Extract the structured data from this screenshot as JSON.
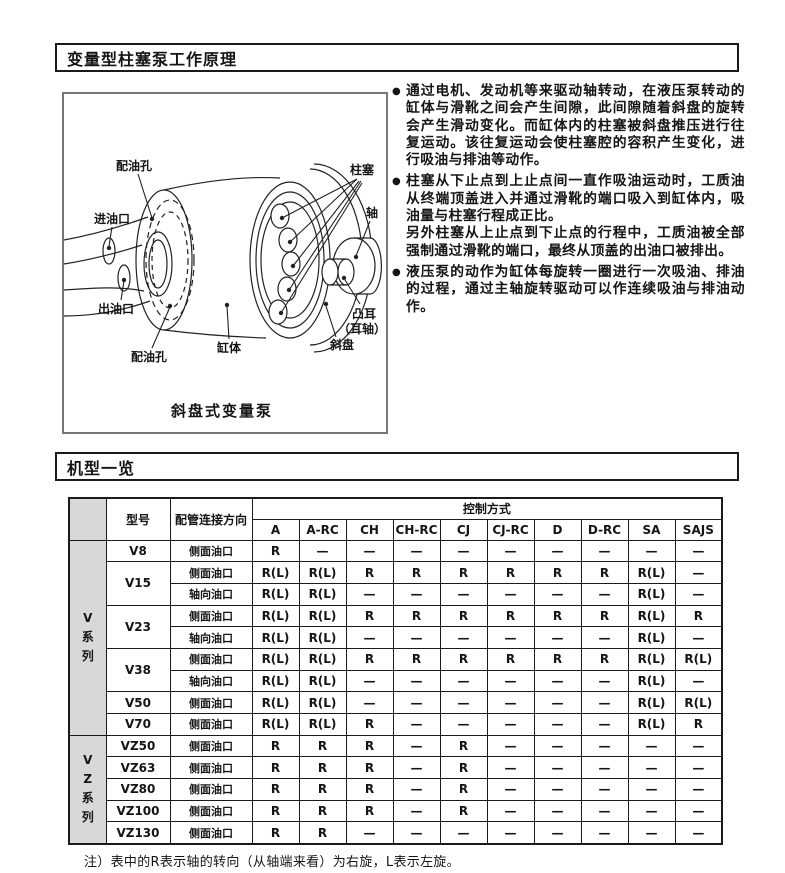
{
  "page": {
    "section1_title": "变量型柱塞泵工作原理",
    "section2_title": "机型一览",
    "bullet_glyph": "●",
    "note": "注）表中的R表示轴的转向（从轴端来看）为右旋，L表示左旋。"
  },
  "principle_bullets": [
    "通过电机、发动机等来驱动轴转动，在液压泵转动的缸体与滑靴之间会产生间隙，此间隙随着斜盘的旋转会产生滑动变化。而缸体内的柱塞被斜盘推压进行往复运动。该往复运动会使柱塞腔的容积产生变化，进行吸油与排油等动作。",
    "柱塞从下止点到上止点间一直作吸油运动时，工质油从终端顶盖进入并通过滑靴的端口吸入到缸体内，吸油量与柱塞行程成正比。\n另外柱塞从上止点到下止点的行程中，工质油被全部强制通过滑靴的端口，最终从顶盖的出油口被排出。",
    "液压泵的动作为缸体每旋转一圈进行一次吸油、排油的过程，通过主轴旋转驱动可以作连续吸油与排油动作。"
  ],
  "diagram": {
    "caption": "斜盘式变量泵",
    "labels": {
      "port_hole_top": "配油孔",
      "inlet_port": "进油口",
      "outlet_port": "出油口",
      "port_hole_bottom": "配油孔",
      "cylinder_block": "缸体",
      "piston": "柱塞",
      "shaft": "轴",
      "lug_line1": "凸耳",
      "lug_line2": "（耳轴）",
      "swash_plate": "斜盘"
    }
  },
  "table": {
    "model_header": "型号",
    "piping_header": "配管连接方向",
    "control_header": "控制方式",
    "control_cols": [
      "A",
      "A-RC",
      "CH",
      "CH-RC",
      "CJ",
      "CJ-RC",
      "D",
      "D-RC",
      "SA",
      "SAJS"
    ],
    "groups": [
      {
        "label": "V\n系\n列",
        "models": [
          {
            "model": "V8",
            "rows": [
              {
                "piping": "侧面油口",
                "cells": [
                  "R",
                  "—",
                  "—",
                  "—",
                  "—",
                  "—",
                  "—",
                  "—",
                  "—",
                  "—"
                ]
              }
            ]
          },
          {
            "model": "V15",
            "rows": [
              {
                "piping": "侧面油口",
                "cells": [
                  "R(L)",
                  "R(L)",
                  "R",
                  "R",
                  "R",
                  "R",
                  "R",
                  "R",
                  "R(L)",
                  "—"
                ]
              },
              {
                "piping": "轴向油口",
                "cells": [
                  "R(L)",
                  "R(L)",
                  "—",
                  "—",
                  "—",
                  "—",
                  "—",
                  "—",
                  "R(L)",
                  "—"
                ]
              }
            ]
          },
          {
            "model": "V23",
            "rows": [
              {
                "piping": "侧面油口",
                "cells": [
                  "R(L)",
                  "R(L)",
                  "R",
                  "R",
                  "R",
                  "R",
                  "R",
                  "R",
                  "R(L)",
                  "R"
                ]
              },
              {
                "piping": "轴向油口",
                "cells": [
                  "R(L)",
                  "R(L)",
                  "—",
                  "—",
                  "—",
                  "—",
                  "—",
                  "—",
                  "R(L)",
                  "—"
                ]
              }
            ]
          },
          {
            "model": "V38",
            "rows": [
              {
                "piping": "侧面油口",
                "cells": [
                  "R(L)",
                  "R(L)",
                  "R",
                  "R",
                  "R",
                  "R",
                  "R",
                  "R",
                  "R(L)",
                  "R(L)"
                ]
              },
              {
                "piping": "轴向油口",
                "cells": [
                  "R(L)",
                  "R(L)",
                  "—",
                  "—",
                  "—",
                  "—",
                  "—",
                  "—",
                  "R(L)",
                  "—"
                ]
              }
            ]
          },
          {
            "model": "V50",
            "rows": [
              {
                "piping": "侧面油口",
                "cells": [
                  "R(L)",
                  "R(L)",
                  "—",
                  "—",
                  "—",
                  "—",
                  "—",
                  "—",
                  "R(L)",
                  "R(L)"
                ]
              }
            ]
          },
          {
            "model": "V70",
            "rows": [
              {
                "piping": "侧面油口",
                "cells": [
                  "R(L)",
                  "R(L)",
                  "R",
                  "—",
                  "—",
                  "—",
                  "—",
                  "—",
                  "R(L)",
                  "R"
                ]
              }
            ]
          }
        ]
      },
      {
        "label": "V\nZ\n系\n列",
        "models": [
          {
            "model": "VZ50",
            "rows": [
              {
                "piping": "侧面油口",
                "cells": [
                  "R",
                  "R",
                  "R",
                  "—",
                  "R",
                  "—",
                  "—",
                  "—",
                  "—",
                  "—"
                ]
              }
            ]
          },
          {
            "model": "VZ63",
            "rows": [
              {
                "piping": "侧面油口",
                "cells": [
                  "R",
                  "R",
                  "R",
                  "—",
                  "R",
                  "—",
                  "—",
                  "—",
                  "—",
                  "—"
                ]
              }
            ]
          },
          {
            "model": "VZ80",
            "rows": [
              {
                "piping": "侧面油口",
                "cells": [
                  "R",
                  "R",
                  "R",
                  "—",
                  "R",
                  "—",
                  "—",
                  "—",
                  "—",
                  "—"
                ]
              }
            ]
          },
          {
            "model": "VZ100",
            "rows": [
              {
                "piping": "侧面油口",
                "cells": [
                  "R",
                  "R",
                  "R",
                  "—",
                  "R",
                  "—",
                  "—",
                  "—",
                  "—",
                  "—"
                ]
              }
            ]
          },
          {
            "model": "VZ130",
            "rows": [
              {
                "piping": "侧面油口",
                "cells": [
                  "R",
                  "R",
                  "—",
                  "—",
                  "—",
                  "—",
                  "—",
                  "—",
                  "—",
                  "—"
                ]
              }
            ]
          }
        ]
      }
    ]
  }
}
